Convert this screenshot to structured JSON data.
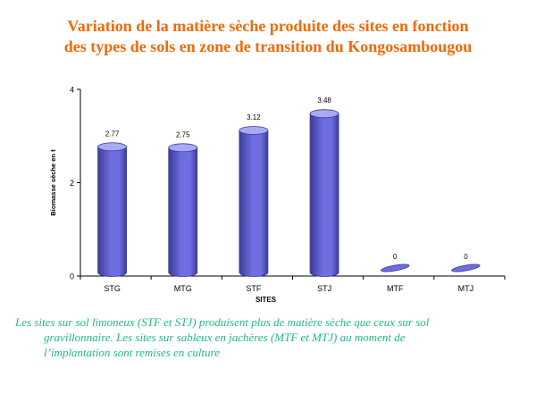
{
  "title": {
    "line1": "Variation de la matière sèche produite  des sites en fonction",
    "line2": "des types de sols en zone de transition du  Kongosambougou"
  },
  "caption": {
    "line1": "Les sites sur sol limoneux (STF  et STJ) produisent plus de matière sèche que ceux sur sol",
    "line2": "gravillonnaire. Les sites sur sableux en jachères (MTF  et MTJ)  au moment de",
    "line3": "l’implantation sont remises en culture"
  },
  "colors": {
    "title": "#f06a08",
    "caption": "#20b88a",
    "bar_fill": "#6e6ee0",
    "bar_top": "#a9a9f5",
    "bar_dark": "#3c3c9a"
  },
  "chart_data": {
    "type": "bar",
    "categories": [
      "STG",
      "MTG",
      "STF",
      "STJ",
      "MTF",
      "MTJ"
    ],
    "values": [
      2.77,
      2.75,
      3.12,
      3.48,
      0,
      0
    ],
    "value_labels": [
      "2.77",
      "2.75",
      "3.12",
      "3.48",
      "0",
      "0"
    ],
    "xlabel": "SITES",
    "ylabel": "Biomasse sèche en t",
    "ylim": [
      0,
      4
    ],
    "yticks": [
      "0",
      "2",
      "4"
    ],
    "style": "3d-cylinder",
    "grid": false,
    "legend": "none"
  }
}
